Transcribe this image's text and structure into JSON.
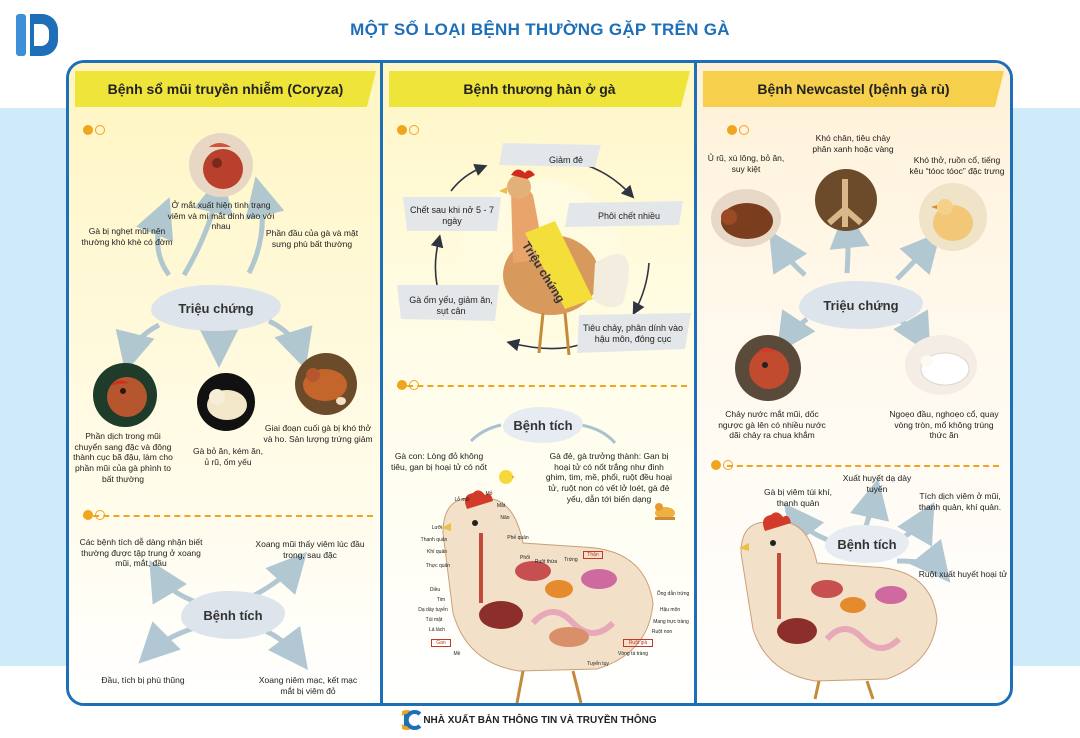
{
  "title": "MỘT SỐ LOẠI BỆNH THƯỜNG GẶP TRÊN GÀ",
  "colors": {
    "accent": "#1d6fb8",
    "dot": "#f0a51e",
    "header_yellow": "#eee43a",
    "header_orange": "#f6cf4c",
    "band": "#cfeaf8"
  },
  "footer": {
    "publisher": "NHÀ XUẤT BẢN THÔNG TIN VÀ TRUYỀN THÔNG"
  },
  "col1": {
    "heading": "Bệnh sổ mũi truyền nhiễm (Coryza)",
    "symptoms_label": "Triệu chứng",
    "symptoms": [
      "Ở mắt xuất hiện tình trạng viêm và mí mắt dính vào với nhau",
      "Gà bị nghẹt mũi nên thường khò khè có đờm",
      "Phần đầu của gà và mặt sưng phù bất thường",
      "Phần dịch trong mũi chuyển sang đặc và đông thành cục bã đậu, làm cho phần mũi của gà phình to bất thường",
      "Gà bỏ ăn, kém ăn, ủ rũ, ốm yếu",
      "Giai đoạn cuối gà bị khó thở và ho. Sản lượng trứng giảm"
    ],
    "lesions_label": "Bệnh tích",
    "lesions": [
      "Các bệnh tích dễ dàng nhận biết thường được tập trung ở xoang mũi, mắt, đầu",
      "Xoang mũi thấy viêm lúc đầu trong, sau đặc",
      "Đầu, tích bị phù thũng",
      "Xoang niêm mạc, kết mạc mắt bị viêm đỏ"
    ]
  },
  "col2": {
    "heading": "Bệnh thương hàn ở gà",
    "symptoms_label": "Triệu chứng",
    "symptoms": [
      "Giảm đẻ",
      "Phôi chết nhiều",
      "Tiêu chảy, phân dính vào hậu môn, đông cục",
      "Gà ốm yếu, giảm ăn, sụt cân",
      "Chết sau khi nở 5 - 7 ngày"
    ],
    "lesions_label": "Bệnh tích",
    "lesions": [
      "Gà con: Lòng đỏ không tiêu, gan bị hoại tử có nốt",
      "Gà đẻ, gà trưởng thành: Gan bị hoại tử có nốt trắng như đinh ghim, tim, mề, phổi, ruột đều hoại tử, ruột non có vết lở loét, gà đẻ yếu, dẫn tới biến dạng"
    ],
    "anatomy_labels": [
      "Lỗ mũi",
      "Mỏ",
      "Mắt",
      "Não",
      "Lưỡi",
      "Thanh quản",
      "Phế quản",
      "Khí quản",
      "Thực quản",
      "Phổi",
      "Ruột thừa",
      "Trứng",
      "Thận",
      "Diều",
      "Tim",
      "Dạ dày tuyến",
      "Túi mật",
      "Lá lách",
      "Gan",
      "Mề",
      "Ống dẫn trứng",
      "Hậu môn",
      "Mang trực tràng",
      "Ruột non",
      "Ruột già",
      "Vòng tá tràng",
      "Tuyến tụy"
    ]
  },
  "col3": {
    "heading": "Bệnh Newcastel (bệnh gà rù)",
    "symptoms_label": "Triệu chứng",
    "symptoms": [
      "Ủ rũ, xù lông, bỏ ăn, suy kiệt",
      "Khó chân, tiêu chảy phân xanh hoặc vàng",
      "Khó thở, ruồn cổ, tiếng kêu “tóoc tóoc” đặc trưng",
      "Chảy nước mắt mũi, dốc ngược gà lên có nhiều nước dãi chảy ra chua khắm",
      "Ngoẹo đầu, nghoẹo cổ, quay vòng tròn, mổ không trúng thức ăn"
    ],
    "lesions_label": "Bệnh tích",
    "lesions": [
      "Gà bị viêm túi khí, thanh quản",
      "Xuất huyết dạ dày tuyến",
      "Tích dịch viêm ở mũi, thanh quản, khí quản.",
      "Ruột xuất huyết hoại tử"
    ]
  }
}
